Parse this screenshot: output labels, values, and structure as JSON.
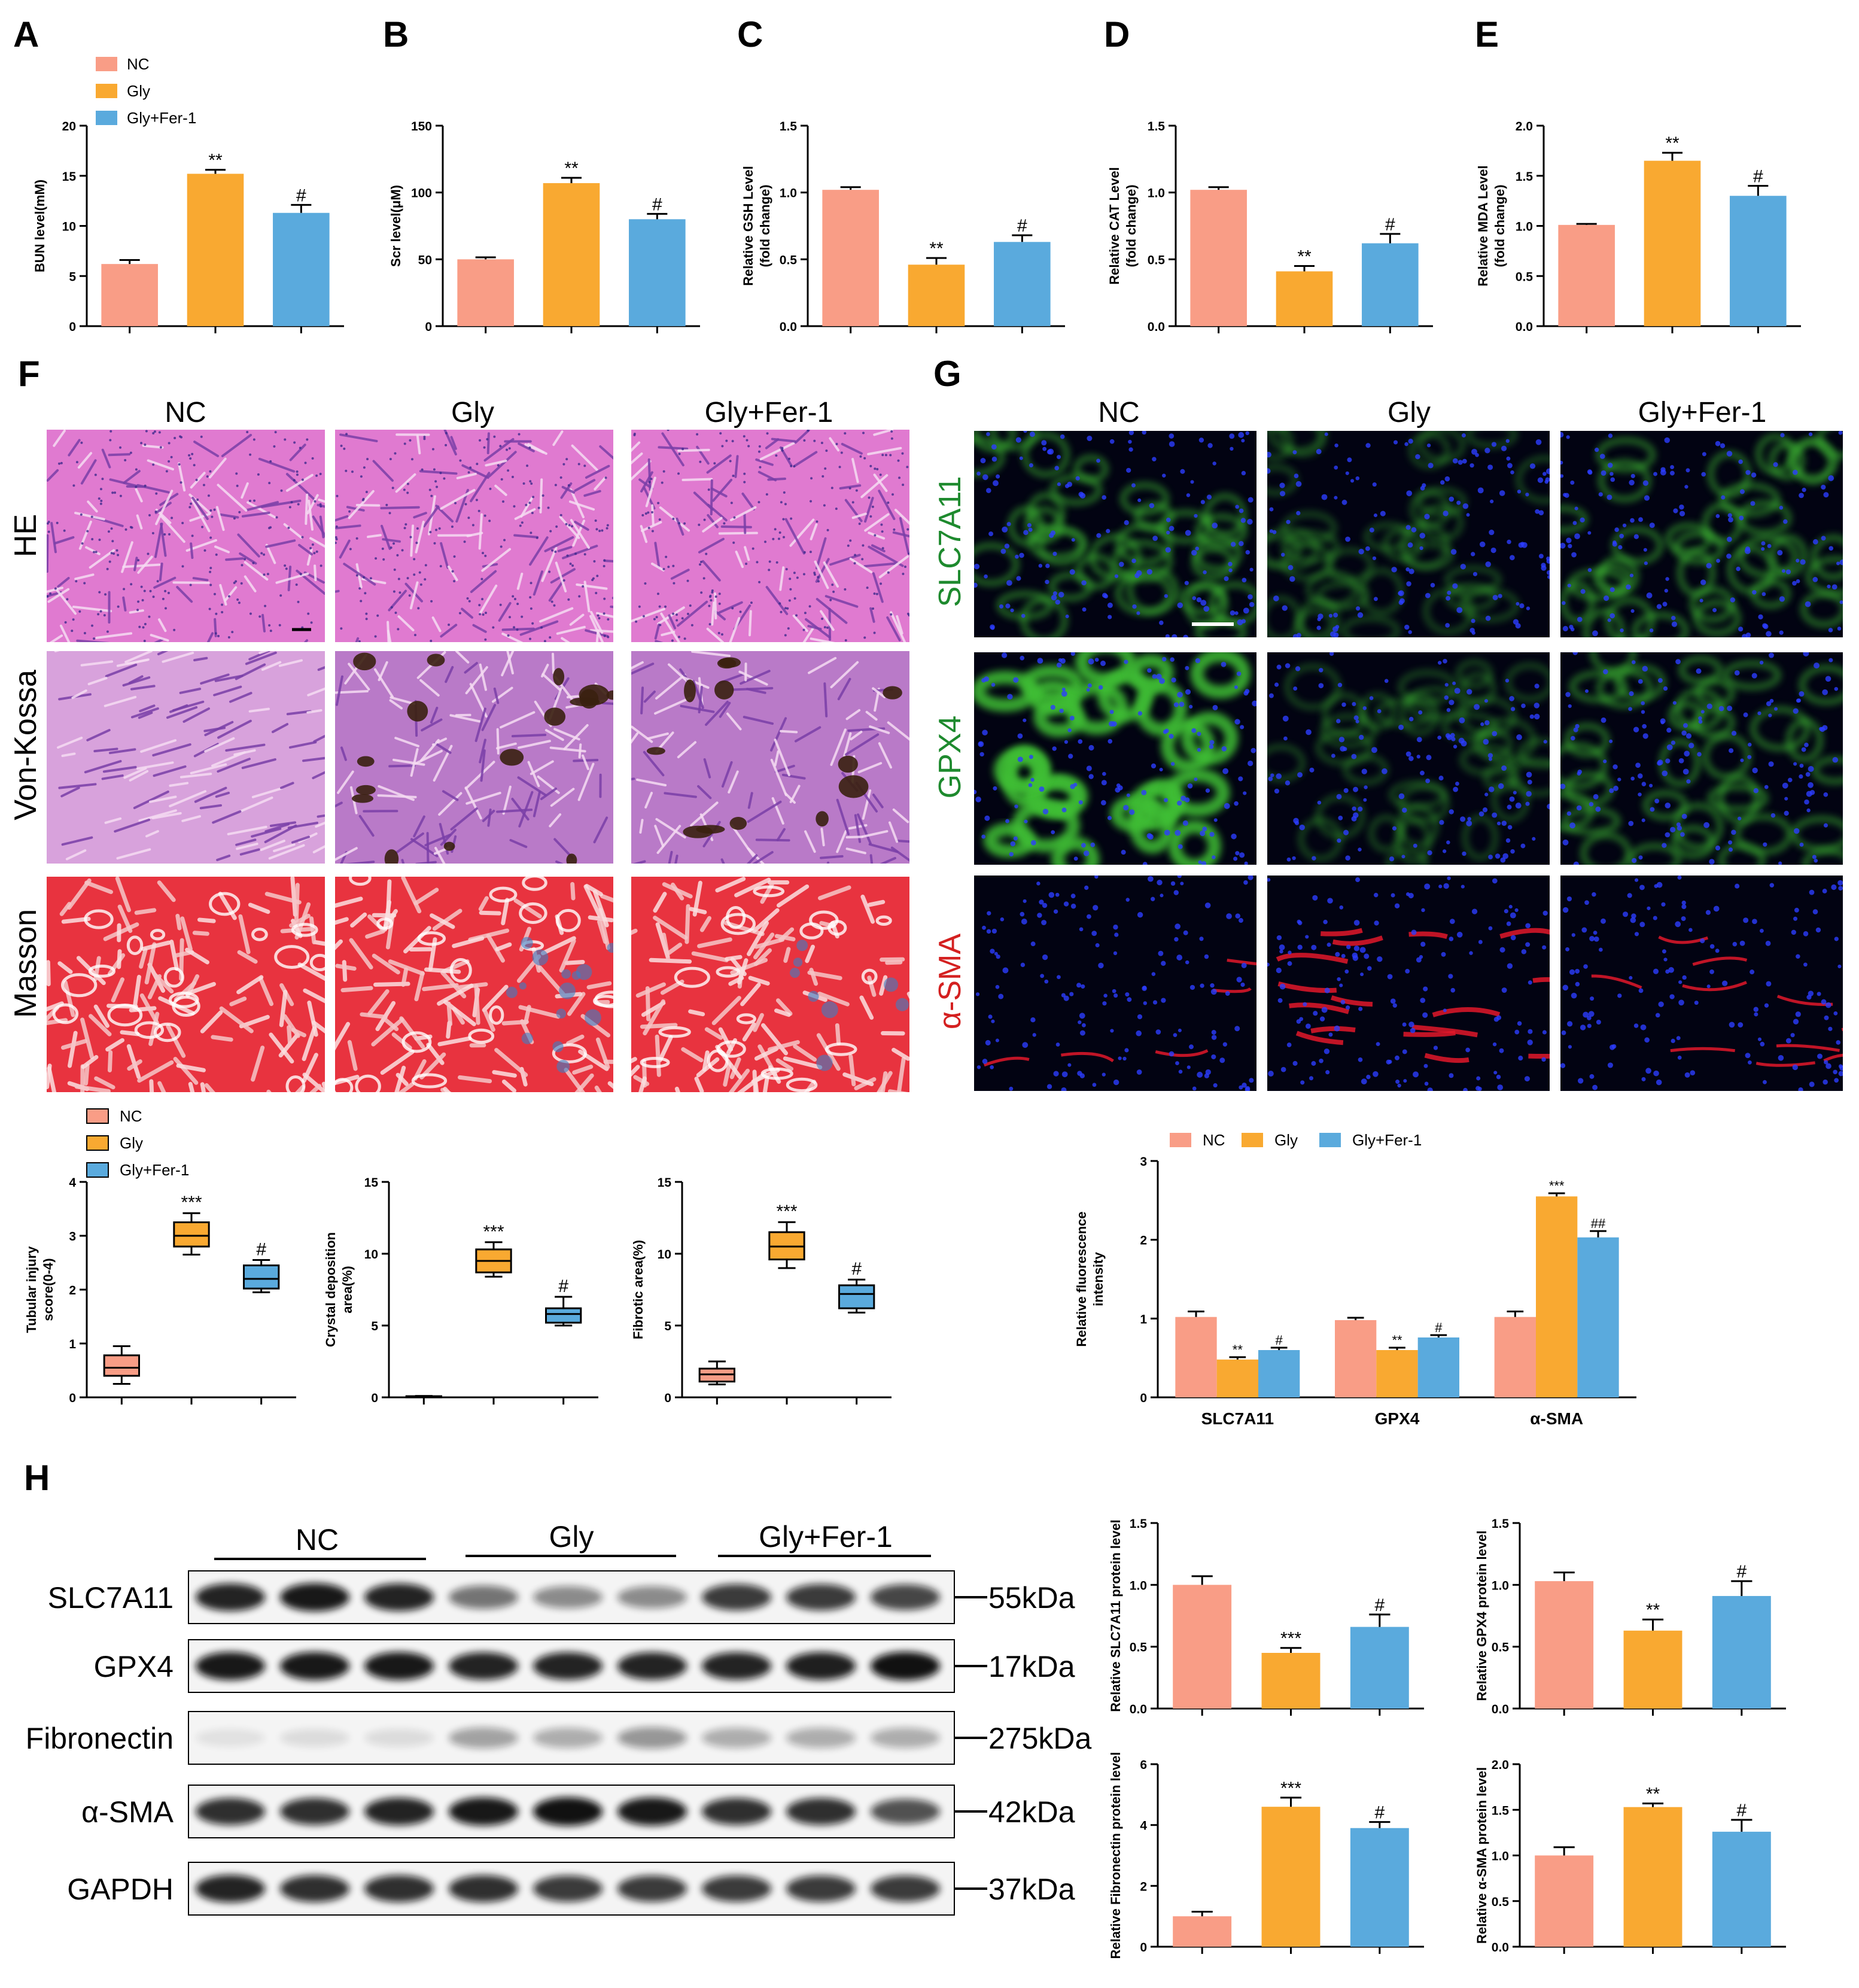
{
  "colors": {
    "NC": "#f99d86",
    "Gly": "#f9a931",
    "GlyFer": "#5aaadd"
  },
  "legend": [
    "NC",
    "Gly",
    "Gly+Fer-1"
  ],
  "panel_labels": [
    "A",
    "B",
    "C",
    "D",
    "E",
    "F",
    "G",
    "H"
  ],
  "chart_data": [
    {
      "id": "A",
      "type": "bar",
      "ylabel": "BUN level(mM)",
      "ylim": [
        0,
        20
      ],
      "yticks": [
        0,
        5,
        10,
        15,
        20
      ],
      "categories": [
        "NC",
        "Gly",
        "Gly+Fer-1"
      ],
      "values": [
        6.2,
        15.2,
        11.3
      ],
      "errors": [
        0.4,
        0.4,
        0.8
      ],
      "annotations": [
        "",
        "**",
        "#"
      ]
    },
    {
      "id": "B",
      "type": "bar",
      "ylabel": "Scr level(μM)",
      "ylim": [
        0,
        150
      ],
      "yticks": [
        0,
        50,
        100,
        150
      ],
      "categories": [
        "NC",
        "Gly",
        "Gly+Fer-1"
      ],
      "values": [
        50,
        107,
        80
      ],
      "errors": [
        1.5,
        4,
        4
      ],
      "annotations": [
        "",
        "**",
        "#"
      ]
    },
    {
      "id": "C",
      "type": "bar",
      "ylabel": "Relative GSH Level",
      "ylabel2": "(fold change)",
      "ylim": [
        0,
        1.5
      ],
      "yticks": [
        "0.0",
        "0.5",
        "1.0",
        "1.5"
      ],
      "categories": [
        "NC",
        "Gly",
        "Gly+Fer-1"
      ],
      "values": [
        1.02,
        0.46,
        0.63
      ],
      "errors": [
        0.02,
        0.05,
        0.05
      ],
      "annotations": [
        "",
        "**",
        "#"
      ]
    },
    {
      "id": "D",
      "type": "bar",
      "ylabel": "Relative CAT Level",
      "ylabel2": "(fold change)",
      "ylim": [
        0,
        1.5
      ],
      "yticks": [
        "0.0",
        "0.5",
        "1.0",
        "1.5"
      ],
      "categories": [
        "NC",
        "Gly",
        "Gly+Fer-1"
      ],
      "values": [
        1.02,
        0.41,
        0.62
      ],
      "errors": [
        0.02,
        0.04,
        0.07
      ],
      "annotations": [
        "",
        "**",
        "#"
      ]
    },
    {
      "id": "E",
      "type": "bar",
      "ylabel": "Relative MDA Level",
      "ylabel2": "(fold change)",
      "ylim": [
        0,
        2.0
      ],
      "yticks": [
        "0.0",
        "0.5",
        "1.0",
        "1.5",
        "2.0"
      ],
      "categories": [
        "NC",
        "Gly",
        "Gly+Fer-1"
      ],
      "values": [
        1.01,
        1.65,
        1.3
      ],
      "errors": [
        0.01,
        0.08,
        0.1
      ],
      "annotations": [
        "",
        "**",
        "#"
      ]
    },
    {
      "id": "F1",
      "type": "box",
      "ylabel": "Tubular injury",
      "ylabel2": "score(0-4)",
      "ylim": [
        0,
        4
      ],
      "yticks": [
        0,
        1,
        2,
        3,
        4
      ],
      "categories": [
        "NC",
        "Gly",
        "Gly+Fer-1"
      ],
      "boxes": [
        [
          0.25,
          0.4,
          0.55,
          0.78,
          0.95
        ],
        [
          2.65,
          2.8,
          3.0,
          3.25,
          3.42
        ],
        [
          1.95,
          2.02,
          2.2,
          2.45,
          2.55
        ]
      ],
      "annotations": [
        "",
        "***",
        "#"
      ]
    },
    {
      "id": "F2",
      "type": "box",
      "ylabel": "Crystal deposition",
      "ylabel2": "area(%)",
      "ylim": [
        0,
        15
      ],
      "yticks": [
        0,
        5,
        10,
        15
      ],
      "categories": [
        "NC",
        "Gly",
        "Gly+Fer-1"
      ],
      "boxes": [
        [
          0.0,
          0.02,
          0.05,
          0.08,
          0.1
        ],
        [
          8.4,
          8.7,
          9.5,
          10.3,
          10.8
        ],
        [
          5.0,
          5.2,
          5.8,
          6.2,
          7.0
        ]
      ],
      "annotations": [
        "",
        "***",
        "#"
      ]
    },
    {
      "id": "F3",
      "type": "box",
      "ylabel": "Fibrotic area(%)",
      "ylim": [
        0,
        15
      ],
      "yticks": [
        0,
        5,
        10,
        15
      ],
      "categories": [
        "NC",
        "Gly",
        "Gly+Fer-1"
      ],
      "boxes": [
        [
          0.9,
          1.1,
          1.6,
          2.0,
          2.5
        ],
        [
          9.0,
          9.6,
          10.5,
          11.5,
          12.2
        ],
        [
          5.9,
          6.2,
          7.2,
          7.8,
          8.2
        ]
      ],
      "annotations": [
        "",
        "***",
        "#"
      ]
    },
    {
      "id": "G",
      "type": "bar",
      "ylabel": "Relative fluorescence",
      "ylabel2": "intensity",
      "ylim": [
        0,
        3
      ],
      "yticks": [
        0,
        1,
        2,
        3
      ],
      "categories": [
        "SLC7A11",
        "GPX4",
        "α-SMA"
      ],
      "series": [
        {
          "name": "NC",
          "values": [
            1.02,
            0.98,
            1.02
          ],
          "errors": [
            0.07,
            0.03,
            0.07
          ],
          "annotations": [
            "",
            "",
            ""
          ]
        },
        {
          "name": "Gly",
          "values": [
            0.48,
            0.6,
            2.55
          ],
          "errors": [
            0.03,
            0.03,
            0.04
          ],
          "annotations": [
            "**",
            "**",
            "***"
          ]
        },
        {
          "name": "Gly+Fer-1",
          "values": [
            0.6,
            0.76,
            2.03
          ],
          "errors": [
            0.03,
            0.03,
            0.08
          ],
          "annotations": [
            "#",
            "#",
            "##"
          ]
        }
      ]
    },
    {
      "id": "H1",
      "type": "bar",
      "ylabel": "Relative SLC7A11 protein level",
      "ylim": [
        0,
        1.5
      ],
      "yticks": [
        "0.0",
        "0.5",
        "1.0",
        "1.5"
      ],
      "categories": [
        "NC",
        "Gly",
        "Gly+Fer-1"
      ],
      "values": [
        1.0,
        0.45,
        0.66
      ],
      "errors": [
        0.07,
        0.04,
        0.1
      ],
      "annotations": [
        "",
        "***",
        "#"
      ]
    },
    {
      "id": "H2",
      "type": "bar",
      "ylabel": "Relative GPX4 protein level",
      "ylim": [
        0,
        1.5
      ],
      "yticks": [
        "0.0",
        "0.5",
        "1.0",
        "1.5"
      ],
      "categories": [
        "NC",
        "Gly",
        "Gly+Fer-1"
      ],
      "values": [
        1.03,
        0.63,
        0.91
      ],
      "errors": [
        0.07,
        0.09,
        0.12
      ],
      "annotations": [
        "",
        "**",
        "#"
      ]
    },
    {
      "id": "H3",
      "type": "bar",
      "ylabel": "Relative Fibronectin protein level",
      "ylim": [
        0,
        6
      ],
      "yticks": [
        0,
        2,
        4,
        6
      ],
      "categories": [
        "NC",
        "Gly",
        "Gly+Fer-1"
      ],
      "values": [
        1.0,
        4.6,
        3.9
      ],
      "errors": [
        0.15,
        0.3,
        0.2
      ],
      "annotations": [
        "",
        "***",
        "#"
      ]
    },
    {
      "id": "H4",
      "type": "bar",
      "ylabel": "Relative α-SMA protein level",
      "ylim": [
        0,
        2.0
      ],
      "yticks": [
        "0.0",
        "0.5",
        "1.0",
        "1.5",
        "2.0"
      ],
      "categories": [
        "NC",
        "Gly",
        "Gly+Fer-1"
      ],
      "values": [
        1.0,
        1.53,
        1.26
      ],
      "errors": [
        0.09,
        0.04,
        0.13
      ],
      "annotations": [
        "",
        "**",
        "#"
      ]
    }
  ],
  "histology": {
    "columns": [
      "NC",
      "Gly",
      "Gly+Fer-1"
    ],
    "rows": [
      "HE",
      "Von-Kossa",
      "Masson"
    ]
  },
  "fluorescence": {
    "columns": [
      "NC",
      "Gly",
      "Gly+Fer-1"
    ],
    "rows": [
      "SLC7A11",
      "GPX4",
      "α-SMA"
    ]
  },
  "western": {
    "groups": [
      "NC",
      "Gly",
      "Gly+Fer-1"
    ],
    "rows": [
      {
        "name": "SLC7A11",
        "size": "55kDa"
      },
      {
        "name": "GPX4",
        "size": "17kDa"
      },
      {
        "name": "Fibronectin",
        "size": "275kDa"
      },
      {
        "name": "α-SMA",
        "size": "42kDa"
      },
      {
        "name": "GAPDH",
        "size": "37kDa"
      }
    ]
  }
}
